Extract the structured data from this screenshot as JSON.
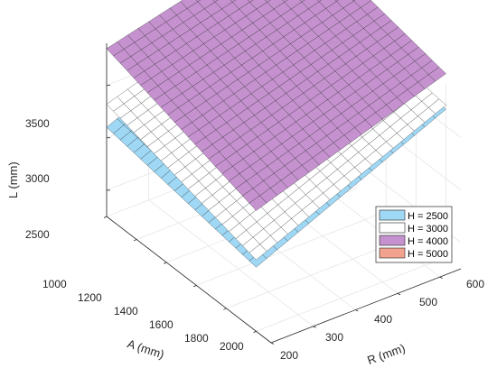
{
  "chart_data": {
    "type": "surface",
    "xlabel": "A (mm)",
    "ylabel": "R (mm)",
    "zlabel": "L (mm)",
    "x_ticks": [
      "1000",
      "1200",
      "1400",
      "1600",
      "1800",
      "2000"
    ],
    "y_ticks": [
      "200",
      "300",
      "400",
      "500",
      "600"
    ],
    "z_ticks": [
      "2500",
      "3000",
      "3500"
    ],
    "xlim": [
      1000,
      2100
    ],
    "ylim": [
      200,
      650
    ],
    "zlim": [
      2250,
      3900
    ],
    "grid": true,
    "legend_position": "right",
    "series": [
      {
        "name": "H = 2500",
        "color": "#9fd8f5",
        "L_corners": {
          "A1000_R200": 3100,
          "A2000_R200": 2860,
          "A1000_R650": 3880,
          "A2000_R650": 3660
        }
      },
      {
        "name": "H = 3000",
        "color": "#ffffff",
        "L_corners": {
          "A1000_R200": 3320,
          "A2000_R200": 2930,
          "A1000_R650": 3900,
          "A2000_R650": 3700
        }
      },
      {
        "name": "H = 4000",
        "color": "#c592cf",
        "L_corners": {
          "A1000_R200": 3850,
          "A2000_R200": 3400,
          "A1000_R650": 4300,
          "A2000_R650": 4000
        }
      },
      {
        "name": "H = 5000",
        "color": "#f2a38f",
        "L_corners": null
      }
    ]
  }
}
